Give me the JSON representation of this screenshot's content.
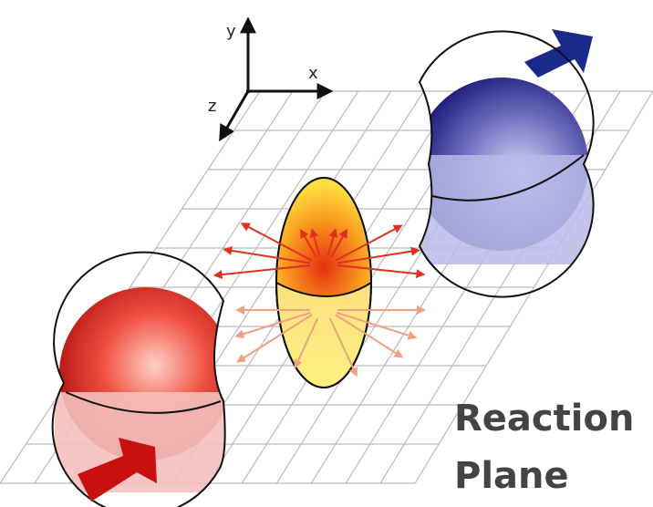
{
  "axes": {
    "y": "y",
    "x": "x",
    "z": "z"
  },
  "label": {
    "line1": "Reaction",
    "line2": "Plane"
  }
}
